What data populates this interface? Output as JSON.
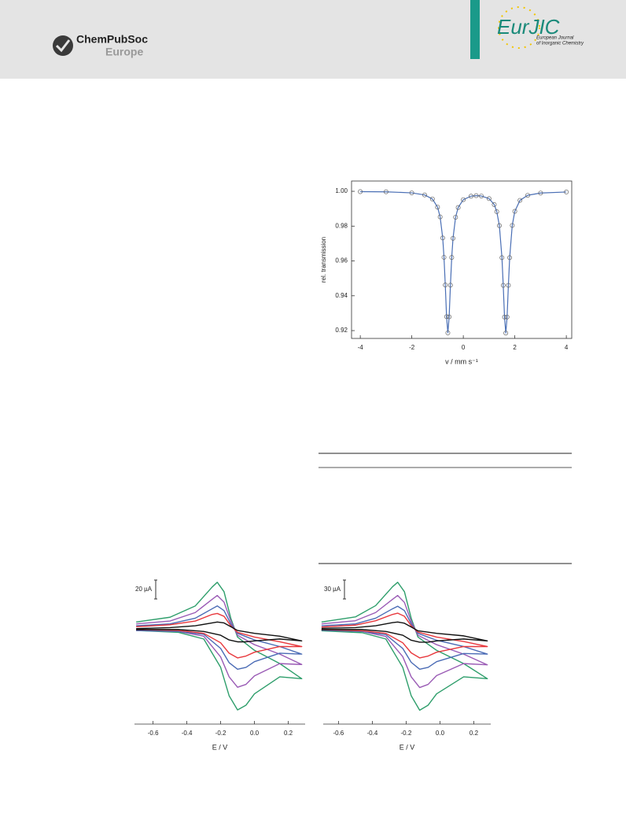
{
  "header": {
    "publisher": "ChemPubSoc",
    "region": "Europe",
    "journal": "EurJIC",
    "journal_full": [
      "European Journal",
      "of Inorganic Chemistry"
    ]
  },
  "chart_data": [
    {
      "type": "scatter",
      "ylabel": "rel. transmission",
      "xlabel": "v / mm s⁻¹",
      "xlim": [
        -4.34,
        4.21
      ],
      "ylim": [
        0.9155,
        1.0059
      ],
      "xticks": [
        -4,
        -2,
        0,
        2,
        4
      ],
      "yticks": [
        0.92,
        0.94,
        0.96,
        0.98,
        {
          "value": 1,
          "label": "1.00"
        }
      ],
      "markers": "circle",
      "x": [
        -4,
        -3,
        -2,
        -1.5,
        -1.2,
        -1.0,
        -0.9,
        -0.8,
        -0.75,
        -0.7,
        -0.65,
        -0.6,
        -0.55,
        -0.5,
        -0.45,
        -0.4,
        -0.3,
        -0.2,
        0,
        0.3,
        0.5,
        0.7,
        1.0,
        1.2,
        1.3,
        1.4,
        1.5,
        1.55,
        1.6,
        1.65,
        1.7,
        1.75,
        1.8,
        1.9,
        2.0,
        2.2,
        2.5,
        3,
        4
      ],
      "series": [
        {
          "color": "#4a6fb5",
          "marker_color": "#666666",
          "values": [
            0.9998,
            0.9997,
            0.9991,
            0.9979,
            0.9956,
            0.9909,
            0.9853,
            0.9732,
            0.9621,
            0.9462,
            0.928,
            0.9187,
            0.9279,
            0.9461,
            0.962,
            0.973,
            0.9851,
            0.9907,
            0.9952,
            0.9972,
            0.9975,
            0.9973,
            0.9958,
            0.9924,
            0.9883,
            0.9803,
            0.9619,
            0.946,
            0.9278,
            0.9186,
            0.9278,
            0.946,
            0.9619,
            0.9804,
            0.9885,
            0.9948,
            0.9977,
            0.999,
            0.9996
          ]
        }
      ]
    },
    {
      "type": "line",
      "xlabel": "E / V",
      "xlim": [
        -0.71,
        0.3
      ],
      "ylim": [
        -100,
        54
      ],
      "xticks": [
        -0.6,
        -0.4,
        -0.2,
        {
          "value": 0,
          "label": "0.0"
        },
        0.2
      ],
      "scale_bar": {
        "value": 20,
        "label": "20 µA"
      },
      "x": [
        -0.7,
        -0.5,
        -0.35,
        -0.25,
        -0.22,
        -0.18,
        -0.14,
        -0.1,
        0,
        0.15,
        0.28,
        0.15,
        0,
        -0.05,
        -0.1,
        -0.15,
        -0.2,
        -0.3,
        -0.45,
        -0.7
      ],
      "series": [
        {
          "color": "#2e9e6b",
          "values": [
            8,
            13,
            25,
            45,
            50,
            40,
            12,
            -8,
            -22,
            -36,
            -52,
            -50,
            -68,
            -80,
            -85,
            -70,
            -40,
            -10,
            -3,
            -1
          ]
        },
        {
          "color": "#9a5bb5",
          "values": [
            6,
            9,
            18,
            32,
            36,
            29,
            9,
            -6,
            -16,
            -26,
            -37,
            -36,
            -49,
            -58,
            -61,
            -50,
            -29,
            -7,
            -2,
            -1
          ]
        },
        {
          "color": "#4a6bb5",
          "values": [
            4,
            6,
            12,
            22,
            25,
            20,
            6,
            -4,
            -11,
            -18,
            -26,
            -25,
            -34,
            -40,
            -42,
            -35,
            -20,
            -5,
            -2,
            -1
          ]
        },
        {
          "color": "#e8383d",
          "values": [
            3,
            5,
            9,
            16,
            17,
            14,
            4,
            -3,
            -8,
            -13,
            -18,
            -18,
            -24,
            -28,
            -30,
            -25,
            -14,
            -4,
            -1,
            0
          ]
        },
        {
          "color": "#111111",
          "values": [
            1,
            2,
            4,
            7,
            8,
            7,
            3,
            -1,
            -4,
            -7,
            -12,
            -10,
            -12,
            -13,
            -13,
            -11,
            -6,
            -2,
            0,
            0
          ]
        }
      ]
    },
    {
      "type": "line",
      "xlabel": "E / V",
      "xlim": [
        -0.69,
        0.3
      ],
      "ylim": [
        -150,
        81
      ],
      "xticks": [
        -0.6,
        -0.4,
        -0.2,
        {
          "value": 0,
          "label": "0.0"
        },
        0.2
      ],
      "scale_bar": {
        "value": 30,
        "label": "30 µA"
      },
      "x": [
        -0.7,
        -0.5,
        -0.38,
        -0.28,
        -0.25,
        -0.21,
        -0.17,
        -0.13,
        -0.02,
        0.14,
        0.28,
        0.14,
        -0.02,
        -0.07,
        -0.12,
        -0.17,
        -0.22,
        -0.32,
        -0.46,
        -0.7
      ],
      "series": [
        {
          "color": "#2e9e6b",
          "values": [
            12,
            20,
            38,
            68,
            75,
            60,
            18,
            -12,
            -33,
            -54,
            -78,
            -75,
            -102,
            -120,
            -128,
            -105,
            -60,
            -15,
            -5,
            -2
          ]
        },
        {
          "color": "#9a5bb5",
          "values": [
            9,
            14,
            27,
            48,
            54,
            43,
            13,
            -9,
            -24,
            -39,
            -56,
            -54,
            -73,
            -87,
            -92,
            -75,
            -43,
            -11,
            -3,
            -1
          ]
        },
        {
          "color": "#4a6bb5",
          "values": [
            6,
            9,
            18,
            33,
            37,
            30,
            9,
            -6,
            -17,
            -27,
            -39,
            -38,
            -51,
            -60,
            -63,
            -52,
            -30,
            -8,
            -3,
            -1
          ]
        },
        {
          "color": "#e8383d",
          "values": [
            4,
            7,
            14,
            24,
            26,
            21,
            6,
            -4,
            -12,
            -19,
            -27,
            -27,
            -36,
            -42,
            -45,
            -37,
            -21,
            -6,
            -2,
            0
          ]
        },
        {
          "color": "#111111",
          "values": [
            2,
            3,
            6,
            11,
            12,
            10,
            4,
            -2,
            -6,
            -10,
            -18,
            -15,
            -18,
            -20,
            -20,
            -17,
            -9,
            -3,
            0,
            0
          ]
        }
      ]
    }
  ]
}
